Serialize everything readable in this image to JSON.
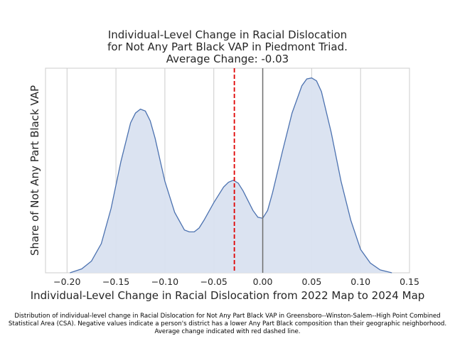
{
  "chart_data": {
    "type": "area",
    "title_lines": [
      "Individual-Level Change in Racial Dislocation",
      "for Not Any Part Black VAP in Piedmont Triad.",
      "Average Change: -0.03"
    ],
    "xlabel": "Individual-Level Change in Racial Dislocation from 2022 Map to 2024 Map",
    "ylabel": "Share of Not Any Part Black VAP",
    "xlim": [
      -0.222,
      0.15
    ],
    "ylim": [
      0,
      1.05
    ],
    "xticks": [
      -0.2,
      -0.15,
      -0.1,
      -0.05,
      0.0,
      0.05,
      0.1,
      0.15
    ],
    "xtick_labels": [
      "−0.20",
      "−0.15",
      "−0.10",
      "−0.05",
      "0.00",
      "0.05",
      "0.10",
      "0.15"
    ],
    "grid": true,
    "mean_line": {
      "x": -0.029,
      "color": "#e00000",
      "style": "dashed"
    },
    "zero_line": {
      "x": 0.0,
      "color": "#6e6e6e"
    },
    "series": [
      {
        "x": [
          -0.197,
          -0.185,
          -0.175,
          -0.165,
          -0.155,
          -0.145,
          -0.135,
          -0.13,
          -0.125,
          -0.12,
          -0.115,
          -0.11,
          -0.105,
          -0.1,
          -0.09,
          -0.08,
          -0.075,
          -0.07,
          -0.065,
          -0.06,
          -0.05,
          -0.04,
          -0.035,
          -0.03,
          -0.025,
          -0.02,
          -0.01,
          -0.005,
          0.0,
          0.005,
          0.01,
          0.02,
          0.03,
          0.04,
          0.045,
          0.05,
          0.055,
          0.06,
          0.07,
          0.08,
          0.09,
          0.1,
          0.11,
          0.12,
          0.132
        ],
        "values": [
          0.0,
          0.02,
          0.06,
          0.15,
          0.33,
          0.57,
          0.77,
          0.82,
          0.84,
          0.83,
          0.78,
          0.69,
          0.58,
          0.47,
          0.31,
          0.22,
          0.21,
          0.21,
          0.23,
          0.27,
          0.36,
          0.44,
          0.465,
          0.475,
          0.46,
          0.42,
          0.32,
          0.285,
          0.28,
          0.32,
          0.41,
          0.62,
          0.82,
          0.96,
          0.995,
          1.0,
          0.985,
          0.93,
          0.72,
          0.47,
          0.27,
          0.12,
          0.05,
          0.015,
          0.0
        ]
      }
    ],
    "line_color": "#4c72b0",
    "fill_color": "#d9e1f0"
  },
  "caption": "Distribution of individual-level change in Racial Dislocation for Not Any Part Black VAP in Greensboro--Winston-Salem--High Point Combined Statistical Area (CSA). Negative values indicate a person's district has a lower Any Part Black composition than their geographic neighborhood. Average change indicated with red dashed line."
}
